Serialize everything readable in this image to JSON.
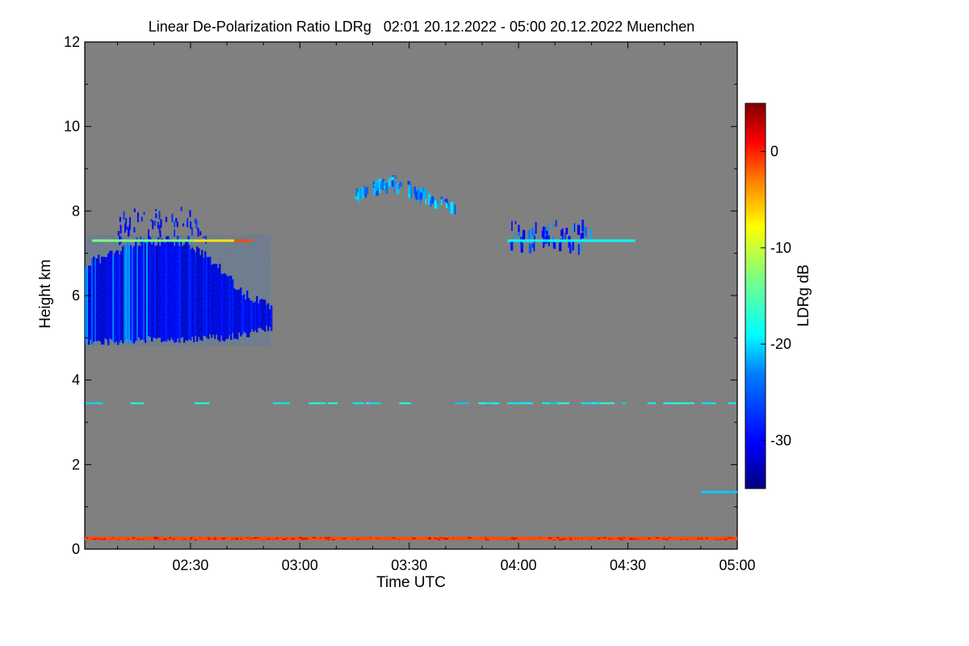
{
  "chart_data": {
    "type": "heatmap",
    "title": "Linear De-Polarization Ratio LDRg   02:01 20.12.2022 - 05:00 20.12.2022 Muenchen",
    "xlabel": "Time UTC",
    "ylabel": "Height km",
    "x_unit": "minutes after 02:00 UTC",
    "xlim": [
      1,
      180
    ],
    "ylim": [
      0,
      12
    ],
    "x_ticks": [
      {
        "value": 30,
        "label": "02:30"
      },
      {
        "value": 60,
        "label": "03:00"
      },
      {
        "value": 90,
        "label": "03:30"
      },
      {
        "value": 120,
        "label": "04:00"
      },
      {
        "value": 150,
        "label": "04:30"
      },
      {
        "value": 180,
        "label": "05:00"
      }
    ],
    "y_ticks": [
      0,
      2,
      4,
      6,
      8,
      10,
      12
    ],
    "background_color": "#808080",
    "colorbar": {
      "label": "LDRg dB",
      "range": [
        -35,
        5
      ],
      "ticks": [
        0,
        -10,
        -20,
        -30
      ],
      "colormap": [
        "#00007f",
        "#0000ff",
        "#007fff",
        "#00ffff",
        "#7fff7f",
        "#ffff00",
        "#ff7f00",
        "#ff0000",
        "#7f0000"
      ]
    },
    "regions": [
      {
        "name": "cirrus-cloud-main",
        "x_range": [
          1,
          52
        ],
        "height_range": [
          4.8,
          8.2
        ],
        "ldr_db": -30
      },
      {
        "name": "cirrus-fragments-upper",
        "x_range": [
          75,
          103
        ],
        "height_range": [
          7.9,
          8.9
        ],
        "ldr_db": -25
      },
      {
        "name": "cirrus-fragments-right",
        "x_range": [
          117,
          140
        ],
        "height_range": [
          6.8,
          7.8
        ],
        "ldr_db": -28
      }
    ],
    "layers": [
      {
        "name": "layer-7.3km-left",
        "x_range": [
          3,
          47
        ],
        "height": 7.3,
        "ldr_db": -15
      },
      {
        "name": "layer-7.3km-right",
        "x_range": [
          117,
          152
        ],
        "height": 7.3,
        "ldr_db": -20
      },
      {
        "name": "layer-3.45km",
        "x_range": [
          1,
          180
        ],
        "height": 3.45,
        "ldr_db": -22
      },
      {
        "name": "layer-1.35km",
        "x_range": [
          170,
          180
        ],
        "height": 1.35,
        "ldr_db": -22
      },
      {
        "name": "ground-layer",
        "x_range": [
          1,
          180
        ],
        "height": 0.25,
        "ldr_db": -3
      }
    ]
  }
}
